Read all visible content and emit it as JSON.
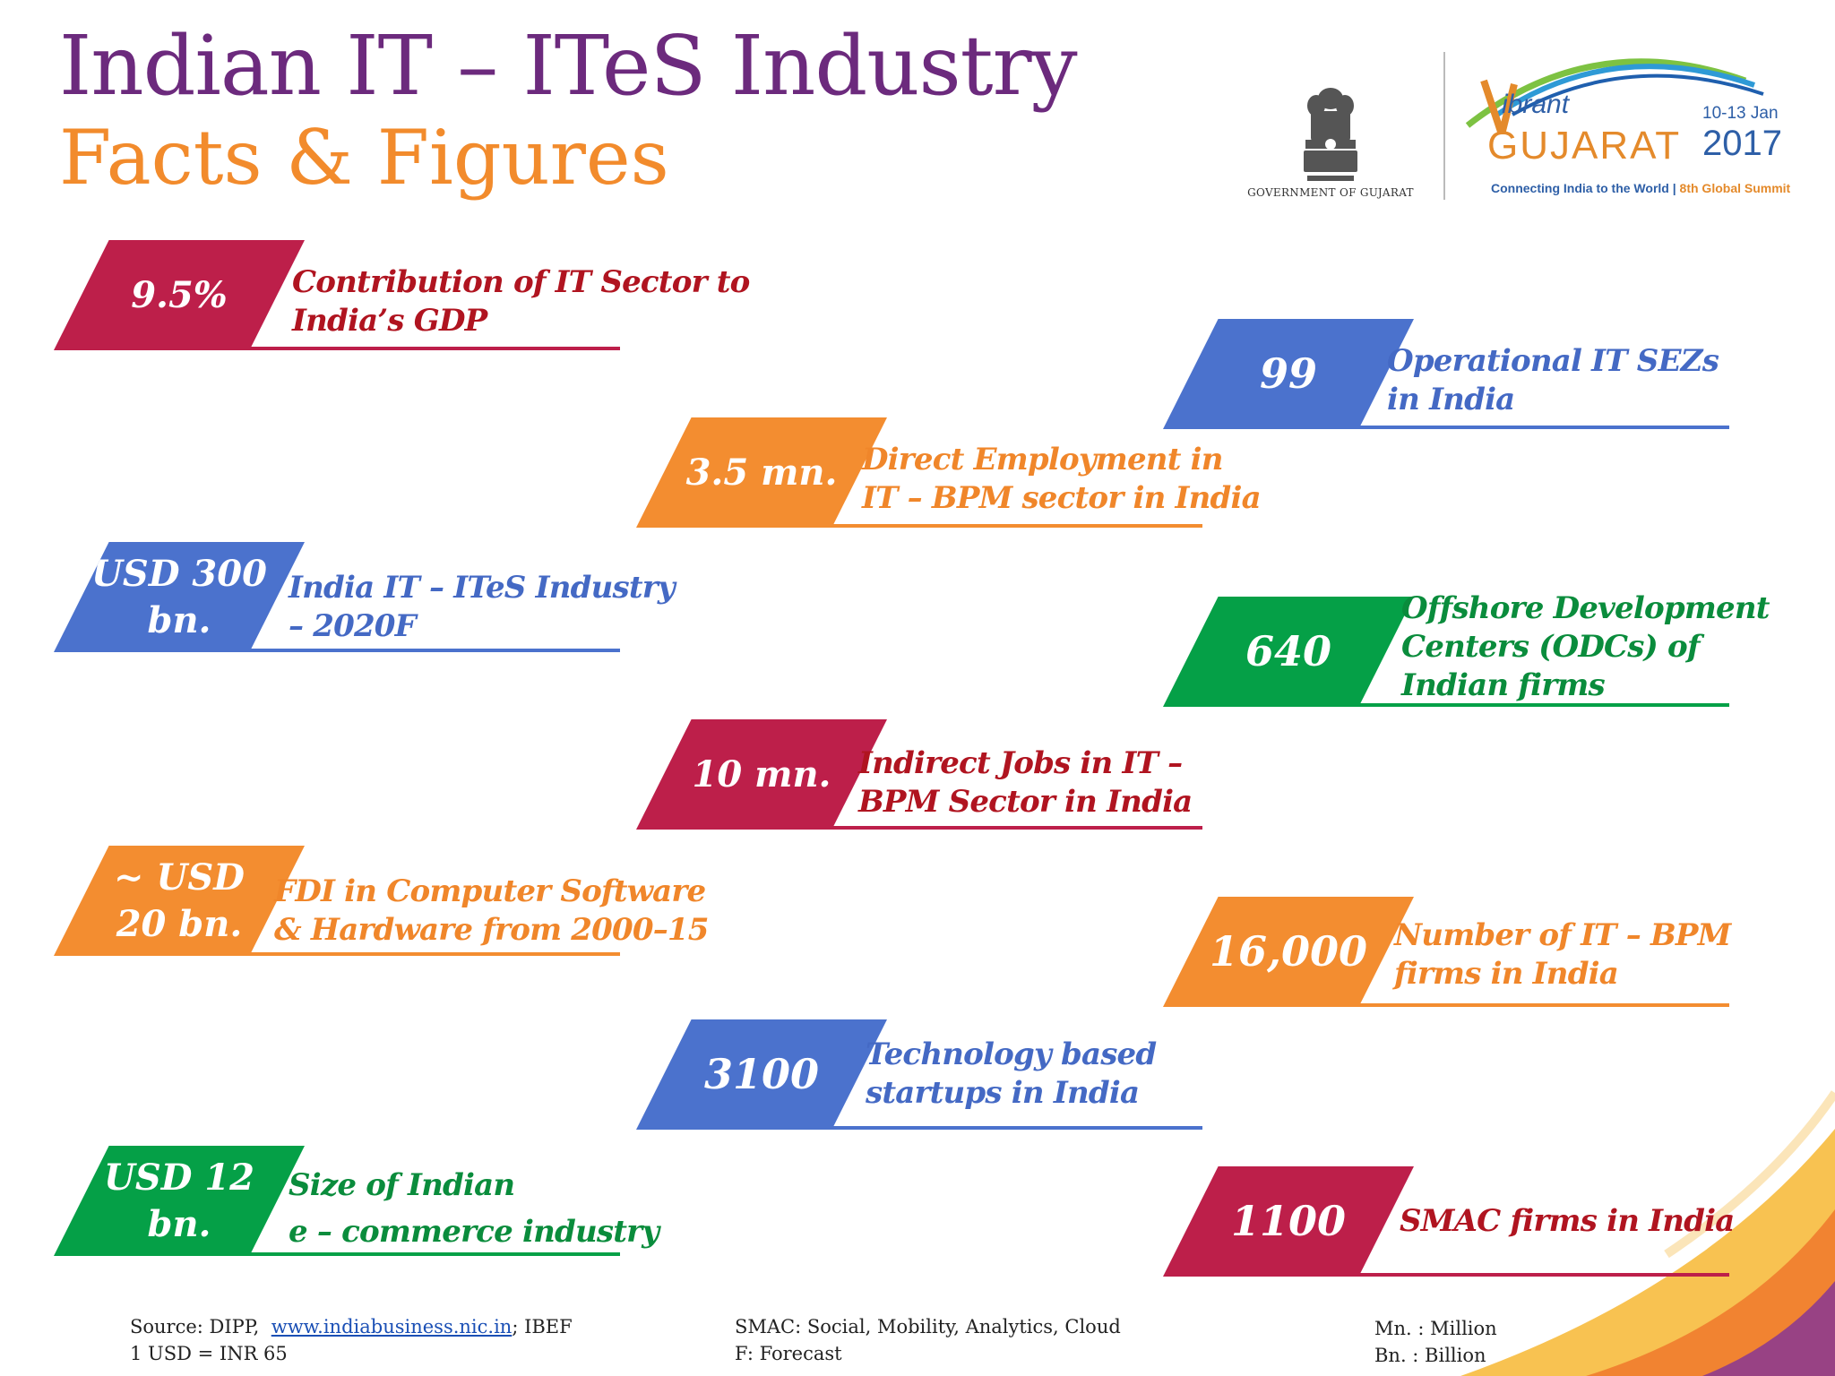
{
  "header": {
    "title_line1": "Indian IT – ITeS Industry",
    "title_line2": "Facts & Figures"
  },
  "logos": {
    "government_label": "GOVERNMENT OF GUJARAT",
    "vibrant": "ibrant",
    "gujarat": "GUJARAT",
    "dates": "10-13 Jan",
    "year": "2017",
    "tagline": "Connecting India to the World",
    "summit": "8th Global Summit"
  },
  "stats": [
    {
      "value": "9.5%",
      "label_line1": "Contribution of IT Sector to",
      "label_line2": "India’s GDP",
      "color": "#bd1f4a"
    },
    {
      "value": "99",
      "label_line1": "Operational IT SEZs",
      "label_line2": "in India",
      "color": "#4b72cd"
    },
    {
      "value": "3.5 mn.",
      "label_line1": "Direct Employment in",
      "label_line2": "IT – BPM sector in India",
      "color": "#f38d30"
    },
    {
      "value": "USD 300\nbn.",
      "label_line1": "India IT – ITeS Industry",
      "label_line2": "– 2020F",
      "color": "#4b72cd"
    },
    {
      "value": "640",
      "label_line1": "Offshore Development",
      "label_line2": "Centers (ODCs) of",
      "label_line3": "Indian firms",
      "color": "#05a047"
    },
    {
      "value": "10 mn.",
      "label_line1": "Indirect Jobs in IT –",
      "label_line2": "BPM Sector in India",
      "color": "#bd1f4a"
    },
    {
      "value": "~ USD\n20 bn.",
      "label_line1": "FDI in Computer Software",
      "label_line2": "& Hardware from 2000–15",
      "color": "#f38d30"
    },
    {
      "value": "16,000",
      "label_line1": "Number of IT – BPM",
      "label_line2": "firms in India",
      "color": "#f38d30"
    },
    {
      "value": "3100",
      "label_line1": "Technology based",
      "label_line2": "startups in India",
      "color": "#4b72cd"
    },
    {
      "value": "USD 12\nbn.",
      "label_line1": "Size of Indian",
      "label_line2": "e – commerce industry",
      "color": "#05a047"
    },
    {
      "value": "1100",
      "label_line1": "SMAC firms in India",
      "color": "#bd1f4a"
    }
  ],
  "footer": {
    "source_prefix": "Source: DIPP,",
    "source_link": "www.indiabusiness.nic.in",
    "source_suffix": "; IBEF",
    "exchange": "1 USD = INR 65",
    "smac": "SMAC: Social, Mobility, Analytics, Cloud",
    "forecast": "F: Forecast",
    "mn": "Mn. : Million",
    "bn": "Bn. : Billion"
  }
}
